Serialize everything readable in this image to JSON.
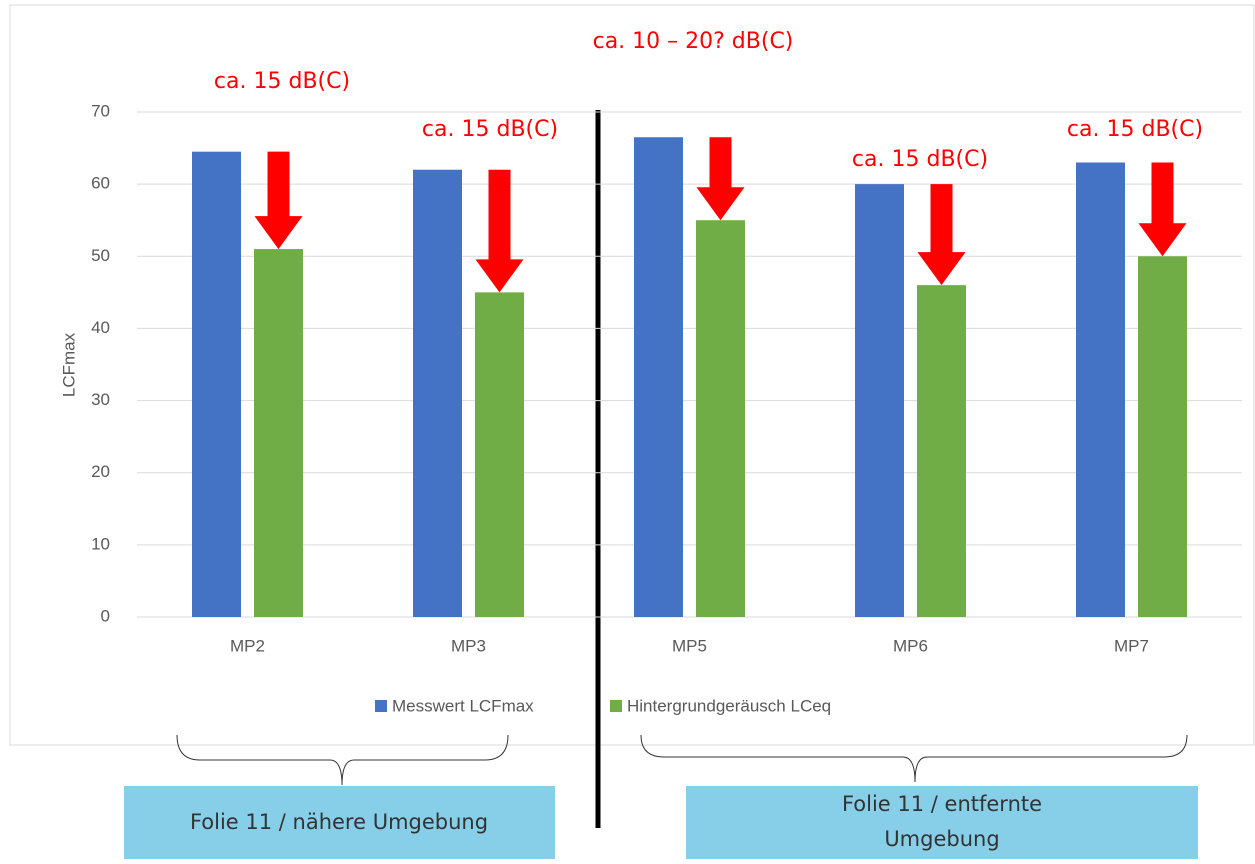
{
  "chart_data": {
    "type": "bar",
    "y_label": "LCFmax",
    "categories": [
      "MP2",
      "MP3",
      "MP5",
      "MP6",
      "MP7"
    ],
    "series": [
      {
        "name": "Messwert LCFmax",
        "color": "#4472c4",
        "values": [
          64.5,
          62,
          66.5,
          60,
          63
        ]
      },
      {
        "name": "Hintergrundgeräusch LCeq",
        "color": "#70ad47",
        "values": [
          51,
          45,
          55,
          46,
          50
        ]
      }
    ],
    "ylim": [
      0,
      70
    ],
    "yticks": [
      0,
      10,
      20,
      30,
      40,
      50,
      60,
      70
    ],
    "grid": true,
    "legend": "bottom",
    "annotations": [
      "ca. 10 – 20? dB(C)",
      "ca. 15 dB(C)",
      "ca. 15 dB(C)",
      "ca. 15 dB(C)",
      "ca. 15 dB(C)"
    ],
    "group_labels": [
      [
        "Folie 11 / nähere Umgebung"
      ],
      [
        "Folie 11 / entfernte",
        "Umgebung"
      ]
    ]
  }
}
